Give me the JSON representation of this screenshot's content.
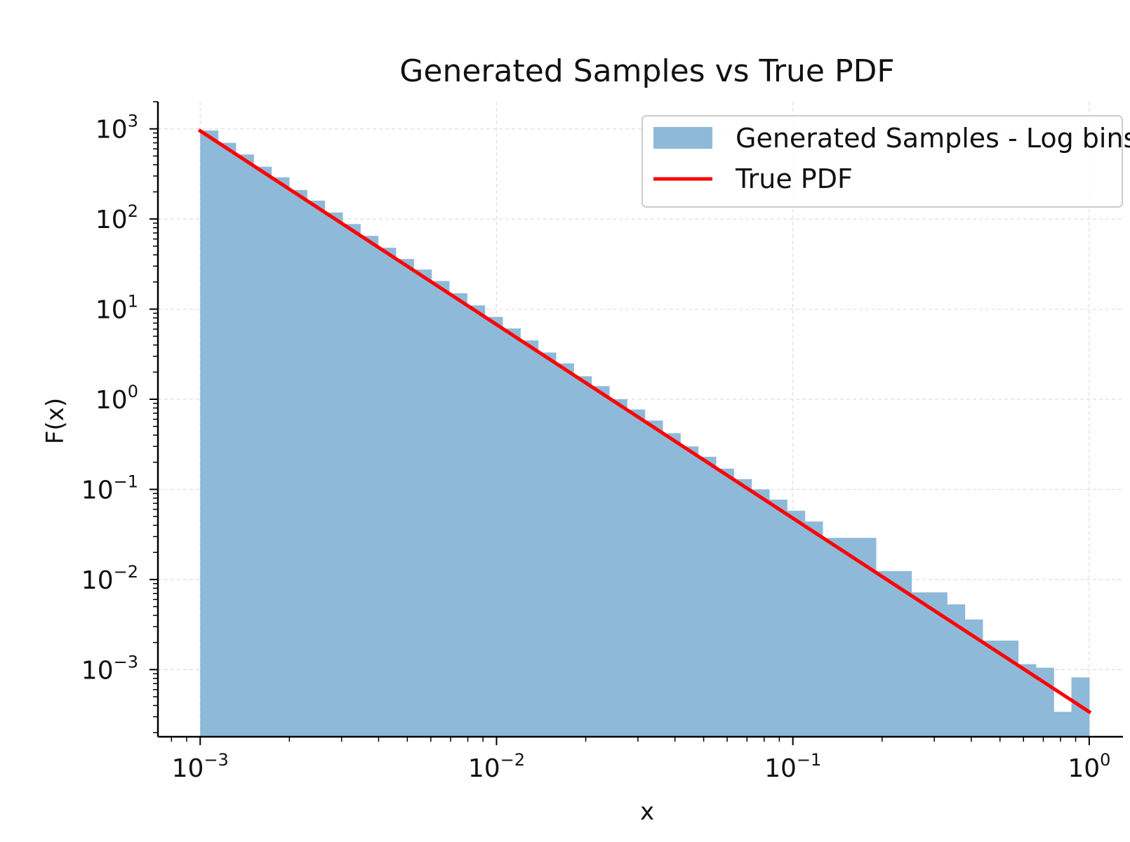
{
  "chart_data": {
    "type": "bar",
    "title": "Generated Samples vs True PDF",
    "xlabel": "x",
    "ylabel": "F(x)",
    "xscale": "log",
    "yscale": "log",
    "xlim": [
      0.00072,
      1.3
    ],
    "ylim": [
      0.00018,
      2000
    ],
    "grid": true,
    "legend_position": "top-right",
    "x_ticks": [
      {
        "value": 0.001,
        "base": "10",
        "exp": "−3"
      },
      {
        "value": 0.01,
        "base": "10",
        "exp": "−2"
      },
      {
        "value": 0.1,
        "base": "10",
        "exp": "−1"
      },
      {
        "value": 1,
        "base": "10",
        "exp": "0"
      }
    ],
    "y_ticks": [
      {
        "value": 1000,
        "base": "10",
        "exp": "3"
      },
      {
        "value": 100,
        "base": "10",
        "exp": "2"
      },
      {
        "value": 10,
        "base": "10",
        "exp": "1"
      },
      {
        "value": 1,
        "base": "10",
        "exp": "0"
      },
      {
        "value": 0.1,
        "base": "10",
        "exp": "−1"
      },
      {
        "value": 0.01,
        "base": "10",
        "exp": "−2"
      },
      {
        "value": 0.001,
        "base": "10",
        "exp": "−3"
      }
    ],
    "bins": {
      "edges": [
        0.001,
        0.001148,
        0.001318,
        0.001514,
        0.001738,
        0.001995,
        0.002291,
        0.00263,
        0.00302,
        0.003467,
        0.003981,
        0.004571,
        0.005248,
        0.006026,
        0.006918,
        0.007943,
        0.00912,
        0.010471,
        0.012023,
        0.013804,
        0.015849,
        0.018197,
        0.020893,
        0.023988,
        0.027542,
        0.031623,
        0.036308,
        0.041687,
        0.047863,
        0.054954,
        0.063096,
        0.072444,
        0.083176,
        0.095499,
        0.109648,
        0.125893,
        0.144544,
        0.165959,
        0.190546,
        0.218776,
        0.251189,
        0.288403,
        0.331131,
        0.380189,
        0.436516,
        0.501187,
        0.57544,
        0.660693,
        0.758578,
        0.870964,
        1.0
      ],
      "values": [
        960,
        700,
        520,
        380,
        290,
        210,
        160,
        118,
        88,
        65,
        48,
        36,
        27.5,
        20.5,
        15,
        11,
        8.2,
        6.1,
        4.5,
        3.3,
        2.5,
        1.8,
        1.4,
        1.0,
        0.77,
        0.58,
        0.42,
        0.3,
        0.23,
        0.17,
        0.13,
        0.1,
        0.077,
        0.058,
        0.044,
        0.029,
        0.029,
        0.029,
        0.0124,
        0.0124,
        0.0072,
        0.0072,
        0.0053,
        0.0036,
        0.0021,
        0.0021,
        0.00115,
        0.00105,
        0.00034,
        0.00082
      ],
      "color": "#8fb9d8",
      "series_name": "Generated Samples - Log bins"
    },
    "pdf_line": {
      "series_name": "True PDF",
      "color": "#ff0000",
      "x": [
        0.001,
        1.0
      ],
      "y": [
        950,
        0.00034
      ]
    }
  }
}
